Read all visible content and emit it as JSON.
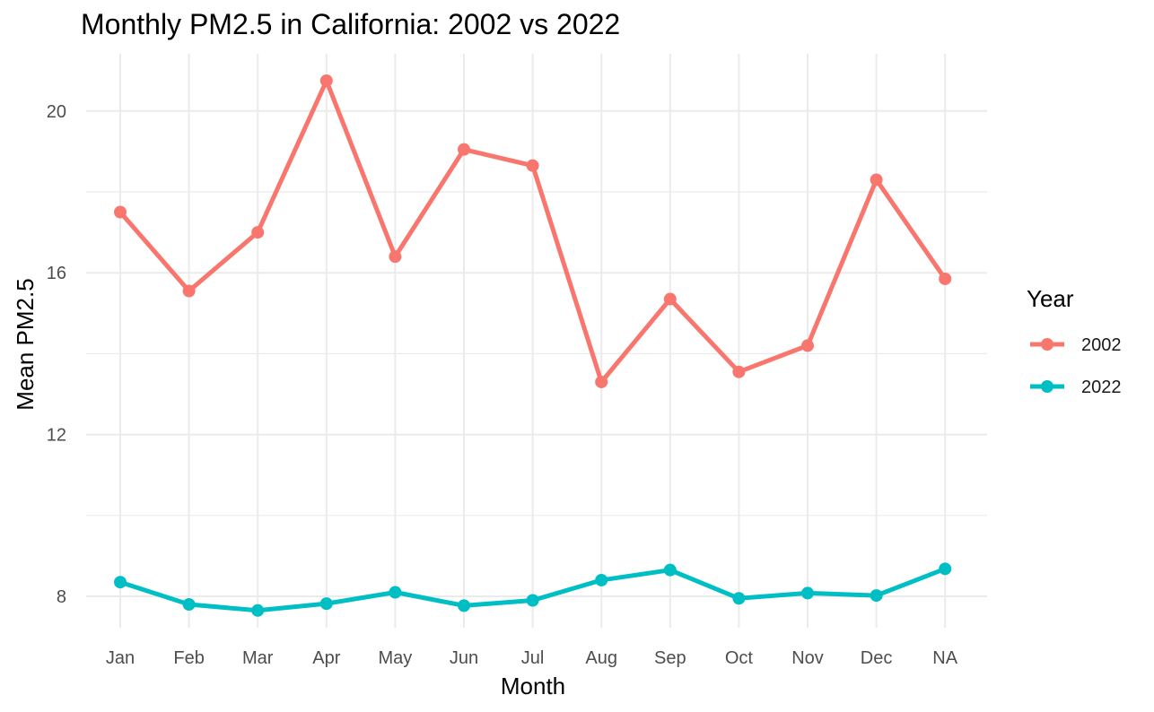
{
  "chart_data": {
    "type": "line",
    "title": "Monthly PM2.5 in California: 2002 vs 2022",
    "xlabel": "Month",
    "ylabel": "Mean PM2.5",
    "categories": [
      "Jan",
      "Feb",
      "Mar",
      "Apr",
      "May",
      "Jun",
      "Jul",
      "Aug",
      "Sep",
      "Oct",
      "Nov",
      "Dec",
      "NA"
    ],
    "yticks": [
      8,
      12,
      16,
      20
    ],
    "ylim": [
      7.0,
      21.4
    ],
    "grid": true,
    "legend": {
      "title": "Year",
      "position": "right"
    },
    "series": [
      {
        "name": "2002",
        "color": "#F8766D",
        "values": [
          17.5,
          15.55,
          17.0,
          20.75,
          16.4,
          19.05,
          18.65,
          13.3,
          15.35,
          13.55,
          14.2,
          18.3,
          15.85
        ]
      },
      {
        "name": "2022",
        "color": "#00BFC4",
        "values": [
          8.35,
          7.8,
          7.65,
          7.82,
          8.1,
          7.77,
          7.9,
          8.4,
          8.65,
          7.95,
          8.08,
          8.02,
          8.68
        ]
      }
    ]
  }
}
